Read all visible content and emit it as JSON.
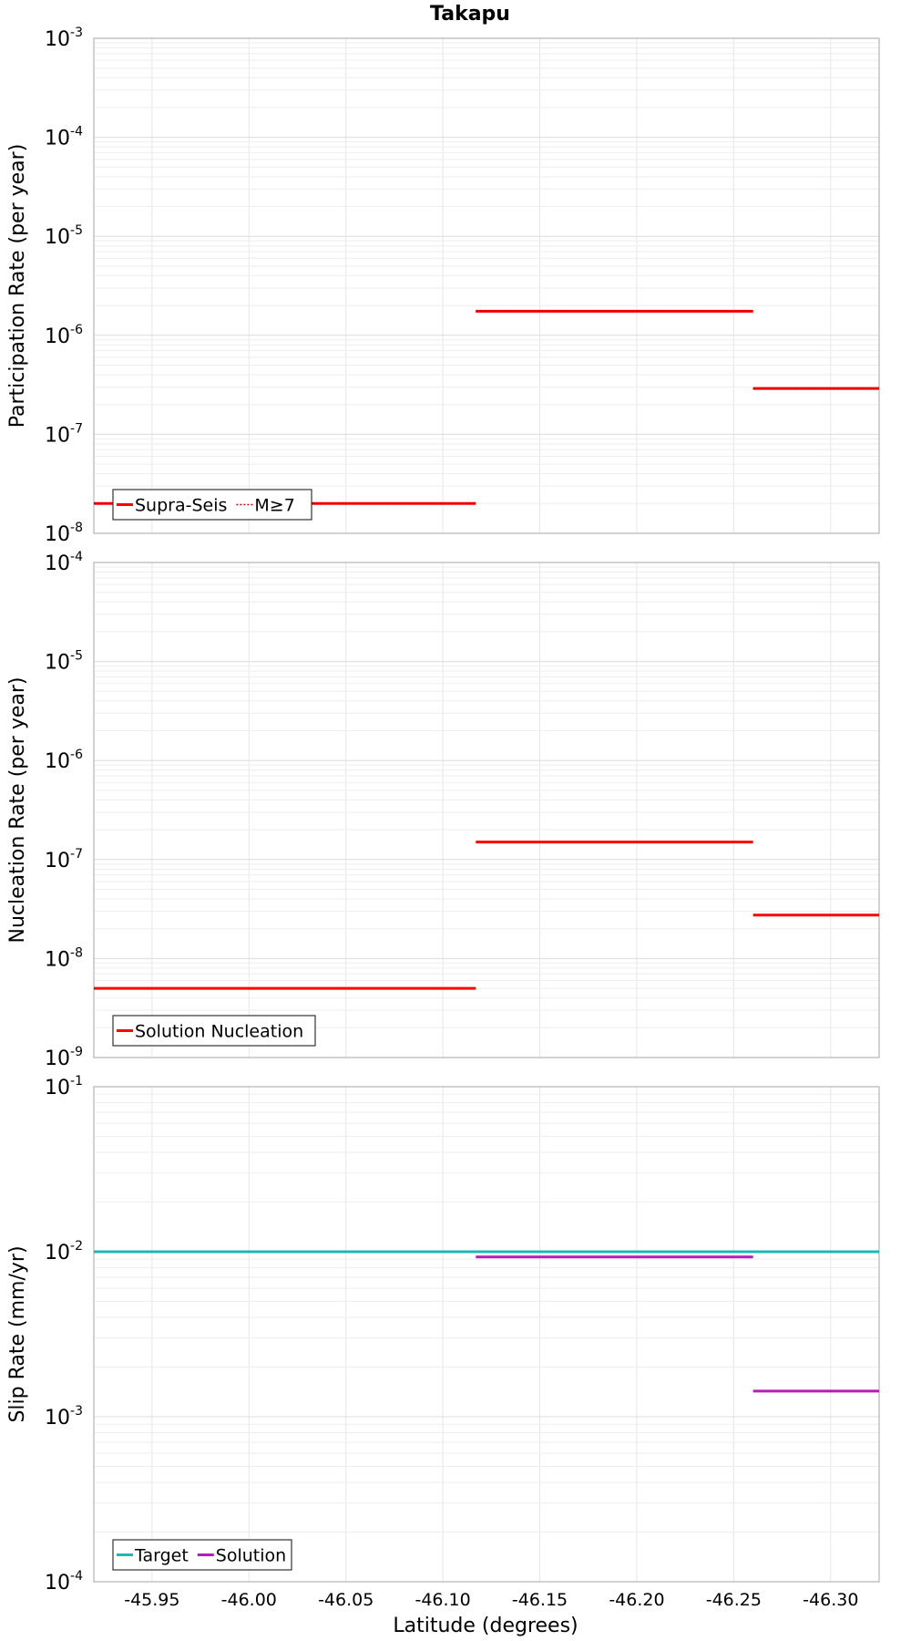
{
  "chart_data": [
    {
      "type": "line",
      "title": "Takapu",
      "xlabel": "",
      "ylabel": "Participation Rate (per year)",
      "xlim": [
        -45.92,
        -46.325
      ],
      "ylim": [
        1e-08,
        0.001
      ],
      "yscale": "log",
      "grid": true,
      "legend_position": "bottom-left",
      "y_ticks": [
        {
          "base": "10",
          "exp": "-8",
          "value": 1e-08
        },
        {
          "base": "10",
          "exp": "-7",
          "value": 1e-07
        },
        {
          "base": "10",
          "exp": "-6",
          "value": 1e-06
        },
        {
          "base": "10",
          "exp": "-5",
          "value": 1e-05
        },
        {
          "base": "10",
          "exp": "-4",
          "value": 0.0001
        },
        {
          "base": "10",
          "exp": "-3",
          "value": 0.001
        }
      ],
      "series": [
        {
          "name": "Supra-Seis",
          "color": "#ff0000",
          "style": "solid",
          "segments": [
            {
              "x": [
                -45.92,
                -46.117
              ],
              "y": 2e-08
            },
            {
              "x": [
                -46.117,
                -46.26
              ],
              "y": 1.75e-06
            },
            {
              "x": [
                -46.26,
                -46.325
              ],
              "y": 2.9e-07
            }
          ]
        },
        {
          "name": "M≥7",
          "color": "#ff0000",
          "style": "dotted",
          "segments": [
            {
              "x": [
                -45.92,
                -46.117
              ],
              "y": 2e-08
            },
            {
              "x": [
                -46.117,
                -46.26
              ],
              "y": 1.75e-06
            },
            {
              "x": [
                -46.26,
                -46.325
              ],
              "y": 2.9e-07
            }
          ]
        }
      ]
    },
    {
      "type": "line",
      "title": "",
      "xlabel": "",
      "ylabel": "Nucleation Rate (per year)",
      "xlim": [
        -45.92,
        -46.325
      ],
      "ylim": [
        1e-09,
        0.0001
      ],
      "yscale": "log",
      "grid": true,
      "legend_position": "bottom-left",
      "y_ticks": [
        {
          "base": "10",
          "exp": "-9",
          "value": 1e-09
        },
        {
          "base": "10",
          "exp": "-8",
          "value": 1e-08
        },
        {
          "base": "10",
          "exp": "-7",
          "value": 1e-07
        },
        {
          "base": "10",
          "exp": "-6",
          "value": 1e-06
        },
        {
          "base": "10",
          "exp": "-5",
          "value": 1e-05
        },
        {
          "base": "10",
          "exp": "-4",
          "value": 0.0001
        }
      ],
      "series": [
        {
          "name": "Solution Nucleation",
          "color": "#ff0000",
          "style": "solid",
          "segments": [
            {
              "x": [
                -45.92,
                -46.117
              ],
              "y": 5e-09
            },
            {
              "x": [
                -46.117,
                -46.26
              ],
              "y": 1.5e-07
            },
            {
              "x": [
                -46.26,
                -46.325
              ],
              "y": 2.75e-08
            }
          ]
        }
      ]
    },
    {
      "type": "line",
      "title": "",
      "xlabel": "Latitude (degrees)",
      "ylabel": "Slip Rate (mm/yr)",
      "xlim": [
        -45.92,
        -46.325
      ],
      "ylim": [
        0.0001,
        0.1
      ],
      "yscale": "log",
      "grid": true,
      "legend_position": "bottom-left",
      "y_ticks": [
        {
          "base": "10",
          "exp": "-4",
          "value": 0.0001
        },
        {
          "base": "10",
          "exp": "-3",
          "value": 0.001
        },
        {
          "base": "10",
          "exp": "-2",
          "value": 0.01
        },
        {
          "base": "10",
          "exp": "-1",
          "value": 0.1
        }
      ],
      "x_ticks": [
        {
          "label": "-45.95",
          "value": -45.95
        },
        {
          "label": "-46.00",
          "value": -46.0
        },
        {
          "label": "-46.05",
          "value": -46.05
        },
        {
          "label": "-46.10",
          "value": -46.1
        },
        {
          "label": "-46.15",
          "value": -46.15
        },
        {
          "label": "-46.20",
          "value": -46.2
        },
        {
          "label": "-46.25",
          "value": -46.25
        },
        {
          "label": "-46.30",
          "value": -46.3
        }
      ],
      "series": [
        {
          "name": "Target",
          "color": "#1fb5b5",
          "style": "solid",
          "segments": [
            {
              "x": [
                -45.92,
                -46.325
              ],
              "y": 0.01
            }
          ]
        },
        {
          "name": "Solution",
          "color": "#b41eb4",
          "style": "solid",
          "segments": [
            {
              "x": [
                -46.117,
                -46.26
              ],
              "y": 0.0093
            },
            {
              "x": [
                -46.26,
                -46.325
              ],
              "y": 0.00143
            }
          ]
        }
      ]
    }
  ]
}
